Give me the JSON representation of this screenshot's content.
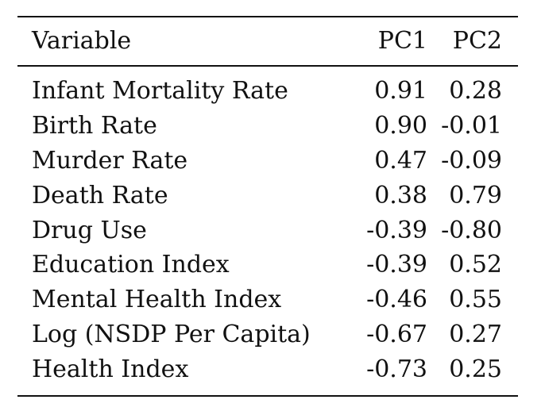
{
  "table": {
    "headers": {
      "variable": "Variable",
      "pc1": "PC1",
      "pc2": "PC2"
    },
    "rows": [
      {
        "variable": "Infant Mortality Rate",
        "pc1": "0.91",
        "pc2": "0.28"
      },
      {
        "variable": "Birth Rate",
        "pc1": "0.90",
        "pc2": "-0.01"
      },
      {
        "variable": "Murder Rate",
        "pc1": "0.47",
        "pc2": "-0.09"
      },
      {
        "variable": "Death Rate",
        "pc1": "0.38",
        "pc2": "0.79"
      },
      {
        "variable": "Drug Use",
        "pc1": "-0.39",
        "pc2": "-0.80"
      },
      {
        "variable": "Education Index",
        "pc1": "-0.39",
        "pc2": "0.52"
      },
      {
        "variable": "Mental Health Index",
        "pc1": "-0.46",
        "pc2": "0.55"
      },
      {
        "variable": "Log (NSDP Per Capita)",
        "pc1": "-0.67",
        "pc2": "0.27"
      },
      {
        "variable": "Health Index",
        "pc1": "-0.73",
        "pc2": "0.25"
      }
    ]
  }
}
